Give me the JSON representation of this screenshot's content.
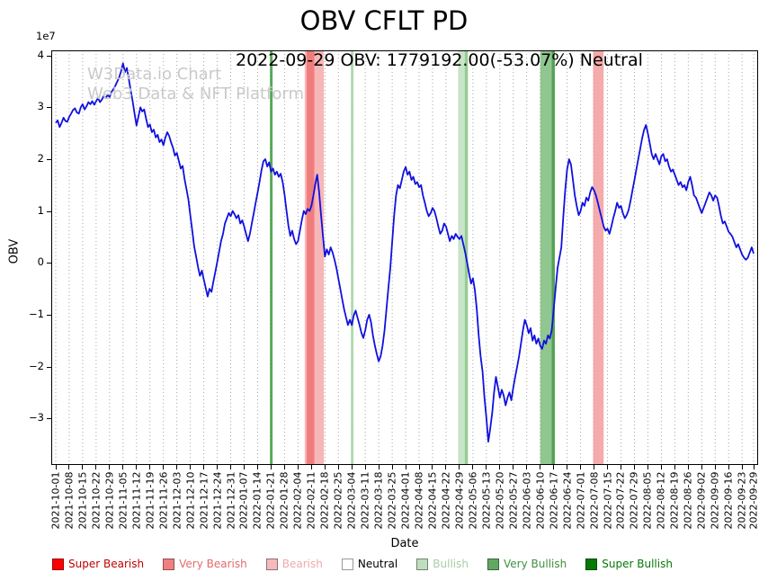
{
  "title": "OBV CFLT PD",
  "annotation": "2022-09-29 OBV: 1779192.00(-53.07%) Neutral",
  "watermark": {
    "line1": "W3Data.io Chart",
    "line2": "Web3 Data & NFT Platform"
  },
  "axes": {
    "y_label": "OBV",
    "x_label": "Date",
    "y_multiplier": "1e7",
    "y_ticks": [
      4,
      3,
      2,
      1,
      0,
      -1,
      -2,
      -3
    ],
    "y_min": -3.9,
    "y_max": 4.1
  },
  "legend": [
    {
      "label": "Super Bearish",
      "color": "#ff0000",
      "text_color": "#c00000"
    },
    {
      "label": "Very Bearish",
      "color": "#f08080",
      "text_color": "#e06c6c"
    },
    {
      "label": "Bearish",
      "color": "#f6baba",
      "text_color": "#eeaaaa"
    },
    {
      "label": "Neutral",
      "color": "#ffffff",
      "text_color": "#000000"
    },
    {
      "label": "Bullish",
      "color": "#bedebe",
      "text_color": "#a6cda6"
    },
    {
      "label": "Very Bullish",
      "color": "#62a862",
      "text_color": "#3f8f3f"
    },
    {
      "label": "Super Bullish",
      "color": "#067806",
      "text_color": "#067806"
    }
  ],
  "chart_data": {
    "type": "line",
    "series_name": "OBV",
    "line_color": "#1010e0",
    "y_unit": 10000000,
    "title": "OBV CFLT PD",
    "xlabel": "Date",
    "ylabel": "OBV",
    "ylim": [
      -3.9,
      4.1
    ],
    "grid": "vertical-dotted",
    "total_days": 363,
    "x_start_day": 0,
    "x_step_days": 1,
    "x_tick_labels": [
      "2021-10-01",
      "2021-10-08",
      "2021-10-15",
      "2021-10-22",
      "2021-10-29",
      "2021-11-05",
      "2021-11-12",
      "2021-11-19",
      "2021-11-26",
      "2021-12-03",
      "2021-12-10",
      "2021-12-17",
      "2021-12-24",
      "2021-12-31",
      "2022-01-07",
      "2022-01-14",
      "2022-01-21",
      "2022-01-28",
      "2022-02-04",
      "2022-02-11",
      "2022-02-18",
      "2022-02-25",
      "2022-03-04",
      "2022-03-11",
      "2022-03-18",
      "2022-03-25",
      "2022-04-01",
      "2022-04-08",
      "2022-04-15",
      "2022-04-22",
      "2022-04-29",
      "2022-05-06",
      "2022-05-13",
      "2022-05-20",
      "2022-05-27",
      "2022-06-03",
      "2022-06-10",
      "2022-06-17",
      "2022-06-24",
      "2022-07-01",
      "2022-07-08",
      "2022-07-15",
      "2022-07-22",
      "2022-07-29",
      "2022-08-05",
      "2022-08-12",
      "2022-08-19",
      "2022-08-26",
      "2022-09-02",
      "2022-09-09",
      "2022-09-16",
      "2022-09-23",
      "2022-09-29"
    ],
    "tick_days": [
      0,
      7,
      14,
      21,
      28,
      35,
      42,
      49,
      56,
      63,
      70,
      77,
      84,
      91,
      98,
      105,
      112,
      119,
      126,
      133,
      140,
      147,
      154,
      161,
      168,
      175,
      182,
      189,
      196,
      203,
      210,
      217,
      224,
      231,
      238,
      245,
      252,
      259,
      266,
      273,
      280,
      287,
      294,
      301,
      308,
      315,
      322,
      329,
      336,
      343,
      350,
      357,
      363
    ],
    "values": [
      2.7,
      2.75,
      2.62,
      2.7,
      2.8,
      2.74,
      2.72,
      2.82,
      2.88,
      2.95,
      2.98,
      2.9,
      2.88,
      3.0,
      3.06,
      2.96,
      3.02,
      3.1,
      3.06,
      3.12,
      3.05,
      3.12,
      3.18,
      3.1,
      3.15,
      3.22,
      3.18,
      3.24,
      3.2,
      3.3,
      3.35,
      3.42,
      3.5,
      3.58,
      3.7,
      3.85,
      3.68,
      3.76,
      3.55,
      3.32,
      3.12,
      2.88,
      2.65,
      2.82,
      3.0,
      2.92,
      2.96,
      2.78,
      2.62,
      2.67,
      2.52,
      2.57,
      2.42,
      2.47,
      2.33,
      2.38,
      2.27,
      2.42,
      2.52,
      2.45,
      2.32,
      2.22,
      2.07,
      2.12,
      1.97,
      1.82,
      1.87,
      1.62,
      1.42,
      1.22,
      0.92,
      0.62,
      0.32,
      0.12,
      -0.08,
      -0.25,
      -0.15,
      -0.32,
      -0.48,
      -0.65,
      -0.5,
      -0.56,
      -0.36,
      -0.18,
      0.02,
      0.22,
      0.42,
      0.56,
      0.76,
      0.86,
      0.96,
      0.9,
      1.0,
      0.94,
      0.86,
      0.92,
      0.76,
      0.82,
      0.7,
      0.56,
      0.42,
      0.56,
      0.76,
      0.96,
      1.16,
      1.36,
      1.56,
      1.78,
      1.96,
      2.0,
      1.86,
      1.94,
      1.76,
      1.82,
      1.7,
      1.76,
      1.66,
      1.72,
      1.56,
      1.32,
      1.02,
      0.72,
      0.52,
      0.62,
      0.46,
      0.36,
      0.42,
      0.62,
      0.82,
      1.0,
      0.94,
      1.04,
      1.0,
      1.1,
      1.3,
      1.52,
      1.7,
      1.36,
      0.92,
      0.52,
      0.12,
      0.26,
      0.16,
      0.3,
      0.2,
      0.06,
      -0.1,
      -0.3,
      -0.5,
      -0.7,
      -0.9,
      -1.05,
      -1.2,
      -1.1,
      -1.2,
      -1.02,
      -0.92,
      -1.06,
      -1.2,
      -1.35,
      -1.45,
      -1.3,
      -1.1,
      -1.0,
      -1.15,
      -1.4,
      -1.6,
      -1.76,
      -1.9,
      -1.8,
      -1.6,
      -1.3,
      -0.9,
      -0.5,
      -0.1,
      0.4,
      0.9,
      1.3,
      1.5,
      1.44,
      1.6,
      1.76,
      1.85,
      1.7,
      1.76,
      1.6,
      1.66,
      1.52,
      1.56,
      1.46,
      1.5,
      1.3,
      1.16,
      1.0,
      0.9,
      0.96,
      1.06,
      1.0,
      0.86,
      0.7,
      0.56,
      0.62,
      0.76,
      0.7,
      0.56,
      0.42,
      0.52,
      0.46,
      0.56,
      0.5,
      0.46,
      0.52,
      0.36,
      0.2,
      0.0,
      -0.2,
      -0.4,
      -0.3,
      -0.52,
      -0.9,
      -1.4,
      -1.8,
      -2.1,
      -2.6,
      -3.0,
      -3.45,
      -3.2,
      -2.9,
      -2.5,
      -2.2,
      -2.4,
      -2.6,
      -2.45,
      -2.56,
      -2.75,
      -2.6,
      -2.5,
      -2.65,
      -2.4,
      -2.2,
      -2.0,
      -1.8,
      -1.56,
      -1.3,
      -1.1,
      -1.2,
      -1.36,
      -1.26,
      -1.5,
      -1.4,
      -1.56,
      -1.46,
      -1.6,
      -1.66,
      -1.5,
      -1.56,
      -1.4,
      -1.46,
      -1.3,
      -0.9,
      -0.5,
      -0.1,
      0.1,
      0.3,
      0.9,
      1.4,
      1.8,
      2.0,
      1.9,
      1.6,
      1.3,
      1.1,
      0.92,
      1.0,
      1.16,
      1.1,
      1.26,
      1.2,
      1.36,
      1.46,
      1.4,
      1.3,
      1.16,
      1.0,
      0.86,
      0.7,
      0.62,
      0.66,
      0.56,
      0.7,
      0.86,
      1.0,
      1.16,
      1.06,
      1.1,
      0.96,
      0.86,
      0.92,
      1.02,
      1.2,
      1.4,
      1.6,
      1.8,
      2.0,
      2.2,
      2.4,
      2.56,
      2.66,
      2.5,
      2.3,
      2.1,
      2.0,
      2.1,
      2.0,
      1.9,
      2.06,
      2.1,
      1.96,
      2.0,
      1.86,
      1.76,
      1.8,
      1.7,
      1.6,
      1.5,
      1.56,
      1.46,
      1.5,
      1.4,
      1.56,
      1.66,
      1.5,
      1.3,
      1.26,
      1.16,
      1.06,
      0.96,
      1.06,
      1.16,
      1.26,
      1.36,
      1.3,
      1.2,
      1.3,
      1.26,
      1.1,
      0.9,
      0.76,
      0.8,
      0.7,
      0.6,
      0.56,
      0.5,
      0.4,
      0.3,
      0.36,
      0.26,
      0.16,
      0.1,
      0.06,
      0.1,
      0.2,
      0.3,
      0.18
    ],
    "bands": [
      {
        "start": 111.4,
        "end": 112.8,
        "color": "#3c9c3c",
        "opacity": 0.85,
        "signal": "very-bullish"
      },
      {
        "start": 129.5,
        "end": 139.5,
        "color": "#f49898",
        "opacity": 0.7,
        "signal": "very-bearish"
      },
      {
        "start": 130.5,
        "end": 134.5,
        "color": "#ee6e6e",
        "opacity": 0.8,
        "signal": "very-bearish"
      },
      {
        "start": 153.5,
        "end": 154.9,
        "color": "#a4d4a4",
        "opacity": 0.85,
        "signal": "bullish"
      },
      {
        "start": 209.3,
        "end": 214.3,
        "color": "#bfe0bf",
        "opacity": 0.85,
        "signal": "bullish"
      },
      {
        "start": 212.8,
        "end": 214.4,
        "color": "#8fc98f",
        "opacity": 0.9,
        "signal": "bullish"
      },
      {
        "start": 252.0,
        "end": 259.5,
        "color": "#7cbc7c",
        "opacity": 0.85,
        "signal": "very-bullish"
      },
      {
        "start": 258.0,
        "end": 259.6,
        "color": "#4e9c4e",
        "opacity": 0.9,
        "signal": "very-bullish"
      },
      {
        "start": 279.5,
        "end": 285.0,
        "color": "#f28f8f",
        "opacity": 0.75,
        "signal": "very-bearish"
      }
    ]
  }
}
